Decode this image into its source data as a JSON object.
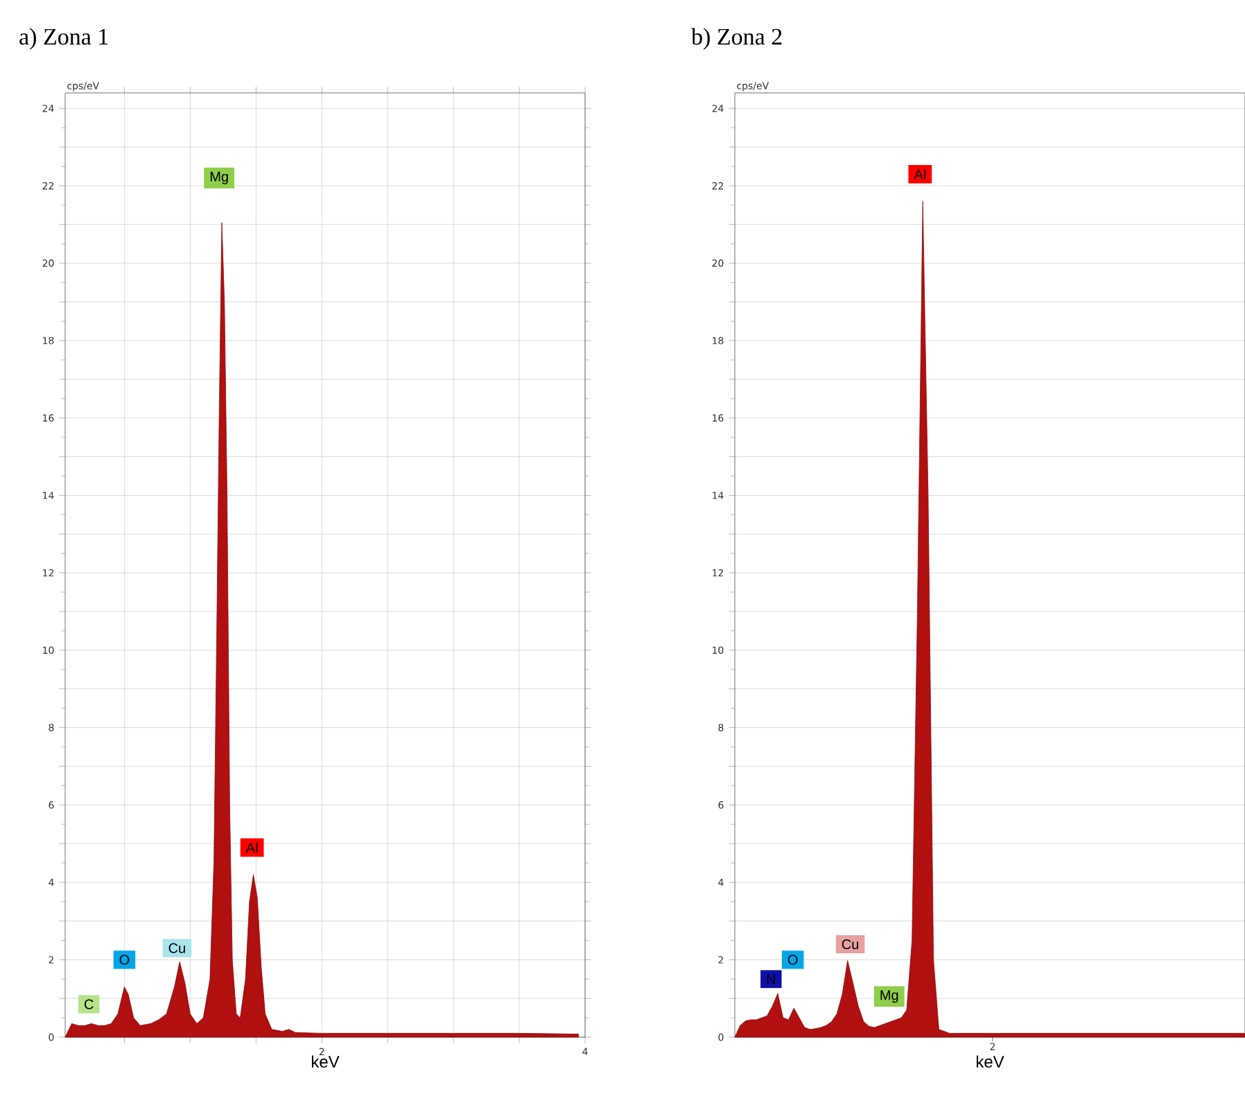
{
  "chart_data": [
    {
      "type": "area",
      "title": "a) Zona 1",
      "xlabel": "keV",
      "ylabel": "cps/eV",
      "color": "#b01010",
      "grid": true,
      "x": [
        0.05,
        0.1,
        0.15,
        0.2,
        0.25,
        0.3,
        0.35,
        0.4,
        0.45,
        0.5,
        0.53,
        0.57,
        0.62,
        0.7,
        0.76,
        0.82,
        0.88,
        0.92,
        0.96,
        1.0,
        1.05,
        1.1,
        1.15,
        1.18,
        1.2,
        1.22,
        1.24,
        1.26,
        1.28,
        1.3,
        1.32,
        1.35,
        1.38,
        1.42,
        1.45,
        1.48,
        1.51,
        1.54,
        1.57,
        1.62,
        1.7,
        1.75,
        1.8,
        2.0,
        2.5,
        3.0,
        3.5,
        3.95
      ],
      "values": [
        0,
        0.35,
        0.3,
        0.3,
        0.35,
        0.3,
        0.3,
        0.35,
        0.6,
        1.3,
        1.1,
        0.5,
        0.3,
        0.35,
        0.45,
        0.6,
        1.3,
        1.95,
        1.4,
        0.6,
        0.35,
        0.5,
        1.5,
        4.5,
        10,
        16,
        21.05,
        19,
        14,
        6,
        2,
        0.6,
        0.5,
        1.5,
        3.5,
        4.2,
        3.6,
        1.8,
        0.6,
        0.2,
        0.15,
        0.2,
        0.12,
        0.1,
        0.1,
        0.1,
        0.1,
        0.08
      ],
      "xlim": [
        0.05,
        4
      ],
      "xticks": [
        {
          "value": 0.5,
          "label": null
        },
        {
          "value": 1,
          "label": null
        },
        {
          "value": 1.5,
          "label": null
        },
        2,
        {
          "value": 2.5,
          "label": null
        },
        {
          "value": 3,
          "label": null
        },
        {
          "value": 3.5,
          "label": null
        },
        4
      ],
      "ylim": [
        0,
        24.4
      ],
      "yticks": [
        0,
        {
          "value": 1,
          "label": null
        },
        2,
        {
          "value": 3,
          "label": null
        },
        4,
        {
          "value": 5,
          "label": null
        },
        6,
        {
          "value": 7,
          "label": null
        },
        8,
        {
          "value": 9,
          "label": null
        },
        10,
        {
          "value": 11,
          "label": null
        },
        12,
        {
          "value": 13,
          "label": null
        },
        14,
        {
          "value": 15,
          "label": null
        },
        16,
        {
          "value": 17,
          "label": null
        },
        18,
        {
          "value": 19,
          "label": null
        },
        20,
        {
          "value": 21,
          "label": null
        },
        22,
        {
          "value": 23,
          "label": null
        },
        24
      ],
      "annotations": [
        {
          "text": "C",
          "x": 0.23,
          "y": 0.85
        },
        {
          "text": "O",
          "x": 0.5,
          "y": 2.0
        },
        {
          "text": "Cu",
          "x": 0.9,
          "y": 2.3
        },
        {
          "text": "Mg",
          "x": 1.22,
          "y": 22.2
        },
        {
          "text": "Al",
          "x": 1.47,
          "y": 4.9
        }
      ]
    },
    {
      "type": "area",
      "title": "b) Zona 2",
      "xlabel": "keV",
      "ylabel": "cps/eV",
      "color": "#b01010",
      "grid": "y",
      "categories": [
        null,
        null,
        null,
        null,
        null,
        null,
        null,
        null,
        null,
        null,
        null,
        null,
        null,
        null,
        null,
        null,
        null,
        null,
        null,
        null,
        null,
        null,
        null,
        null,
        null,
        null,
        null,
        null,
        null,
        null,
        null,
        null,
        null,
        null,
        null,
        null,
        null,
        null,
        null,
        null,
        null,
        null,
        null,
        null,
        null,
        null,
        null,
        null,
        null,
        null,
        null,
        null,
        null,
        null,
        null,
        null,
        null,
        null,
        null,
        null,
        null,
        null,
        null,
        null,
        null,
        null,
        null,
        null,
        null,
        null,
        null,
        null,
        null,
        null,
        null,
        null,
        null,
        null,
        null,
        null,
        null,
        null,
        null,
        null,
        null,
        null,
        null,
        null,
        null,
        null,
        null,
        null,
        null,
        null,
        null,
        null
      ],
      "values": [
        0,
        0.3,
        0.42,
        0.45,
        0.45,
        0.5,
        0.55,
        0.8,
        1.13,
        0.5,
        0.45,
        0.75,
        0.5,
        0.25,
        0.2,
        0.22,
        0.25,
        0.3,
        0.4,
        0.6,
        1.1,
        1.98,
        1.4,
        0.8,
        0.4,
        0.28,
        0.25,
        0.3,
        0.35,
        0.4,
        0.45,
        0.5,
        0.7,
        2.5,
        11,
        21.6,
        14,
        2,
        0.2,
        0.15,
        0.1,
        0.1,
        0.1,
        0.1,
        0.1,
        0.1,
        0.1,
        0.1,
        0.1,
        0.1,
        0.1,
        0.1,
        0.1,
        0.1,
        0.1,
        0.1,
        0.1,
        0.1,
        0.1,
        0.1,
        0.1,
        0.1,
        0.1,
        0.1,
        0.1,
        0.1,
        0.1,
        0.1,
        0.1,
        0.1,
        0.1,
        0.1,
        0.1,
        0.1,
        0.1,
        0.1,
        0.1,
        0.1,
        0.1,
        0.1,
        0.1,
        0.1,
        0.1,
        0.1,
        0.1,
        0.1,
        0.1,
        0.1,
        0.1,
        0.1,
        0.1,
        0.1,
        0.1,
        0.1,
        0.1,
        0.1
      ],
      "ylim": [
        0,
        24.4
      ],
      "yticks": [
        0,
        {
          "value": 1,
          "label": null
        },
        2,
        {
          "value": 3,
          "label": null
        },
        4,
        {
          "value": 5,
          "label": null
        },
        6,
        {
          "value": 7,
          "label": null
        },
        8,
        {
          "value": 9,
          "label": null
        },
        10,
        {
          "value": 11,
          "label": null
        },
        12,
        {
          "value": 13,
          "label": null
        },
        14,
        {
          "value": 15,
          "label": null
        },
        16,
        {
          "value": 17,
          "label": null
        },
        18,
        {
          "value": 19,
          "label": null
        },
        20,
        {
          "value": 21,
          "label": null
        },
        22,
        {
          "value": 23,
          "label": null
        },
        24
      ],
      "annotations": [
        {
          "text": "N",
          "y": 1.5
        },
        {
          "text": "O",
          "y": 2.0
        },
        {
          "text": "Cu",
          "y": 2.4
        },
        {
          "text": "Mg",
          "y": 1.05
        },
        {
          "text": "Al",
          "y": 22.3
        },
        "2"
      ]
    }
  ]
}
